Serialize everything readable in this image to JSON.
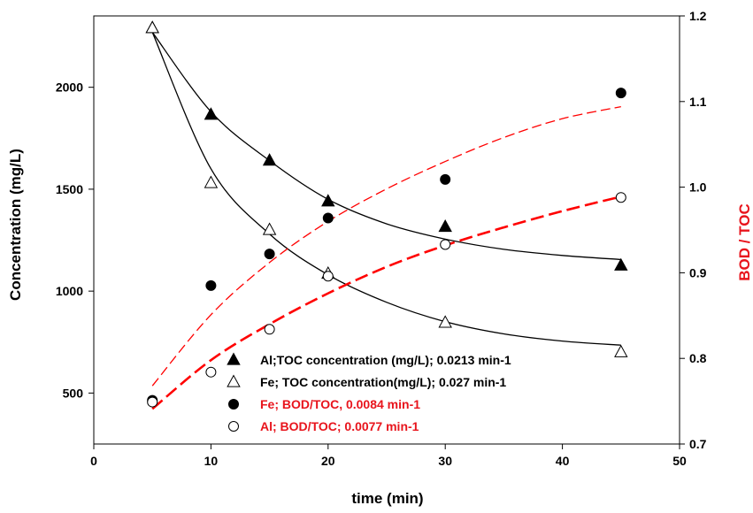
{
  "chart_data": {
    "type": "scatter",
    "xlabel": "time (min)",
    "ylabel": "Concentration (mg/L)",
    "y2label": "BOD / TOC",
    "xlim": [
      0,
      50
    ],
    "ylim": [
      250,
      2350
    ],
    "y2lim": [
      0.7,
      1.2
    ],
    "x_ticks": [
      0,
      10,
      20,
      30,
      40,
      50
    ],
    "y_ticks": [
      500,
      1000,
      1500,
      2000
    ],
    "y2_ticks": [
      0.7,
      0.8,
      0.9,
      1.0,
      1.1,
      1.2
    ],
    "y2_tick_labels": [
      "0.7",
      "0.8",
      "0.9",
      "1.0",
      "1.1",
      "1.2"
    ],
    "grid": false,
    "legend_position": "bottom-right",
    "series": [
      {
        "name": "Al;TOC concentration (mg/L); 0.0213 min-1",
        "axis": "left",
        "marker": "filled-triangle",
        "color": "#000000",
        "x": [
          5,
          10,
          15,
          20,
          30,
          45
        ],
        "y": [
          2290,
          1865,
          1640,
          1440,
          1315,
          1125
        ],
        "fit": {
          "style": "solid",
          "color": "#000000",
          "x": [
            5,
            10,
            15,
            20,
            25,
            30,
            35,
            40,
            45
          ],
          "y": [
            2270,
            1880,
            1640,
            1450,
            1330,
            1255,
            1205,
            1175,
            1155
          ]
        }
      },
      {
        "name": "Fe; TOC concentration(mg/L); 0.027 min-1",
        "axis": "left",
        "marker": "open-triangle",
        "color": "#000000",
        "x": [
          5,
          10,
          15,
          20,
          30,
          45
        ],
        "y": [
          2290,
          1530,
          1300,
          1085,
          845,
          700
        ],
        "fit": {
          "style": "solid",
          "color": "#000000",
          "x": [
            5,
            10,
            15,
            20,
            25,
            30,
            35,
            40,
            45
          ],
          "y": [
            2270,
            1600,
            1280,
            1080,
            945,
            850,
            790,
            755,
            735
          ]
        }
      },
      {
        "name": "Fe; BOD/TOC, 0.0084 min-1",
        "axis": "right",
        "marker": "filled-circle",
        "color": "#000000",
        "x": [
          5,
          10,
          15,
          20,
          30,
          45
        ],
        "y": [
          0.751,
          0.885,
          0.922,
          0.964,
          1.009,
          1.11
        ],
        "fit": {
          "style": "dashed-thin",
          "color": "#ff0000",
          "x": [
            5,
            10,
            15,
            20,
            25,
            30,
            35,
            40,
            45
          ],
          "y": [
            0.768,
            0.851,
            0.912,
            0.96,
            0.998,
            1.03,
            1.058,
            1.08,
            1.094
          ]
        }
      },
      {
        "name": "Al; BOD/TOC; 0.0077 min-1",
        "axis": "right",
        "marker": "open-circle",
        "color": "#000000",
        "x": [
          5,
          10,
          15,
          20,
          30,
          45
        ],
        "y": [
          0.749,
          0.784,
          0.834,
          0.896,
          0.933,
          0.988
        ],
        "fit": {
          "style": "dashed-thick",
          "color": "#ff0000",
          "x": [
            5,
            10,
            15,
            20,
            25,
            30,
            35,
            40,
            45
          ],
          "y": [
            0.741,
            0.798,
            0.84,
            0.876,
            0.907,
            0.932,
            0.953,
            0.972,
            0.989
          ]
        }
      }
    ],
    "legend": [
      {
        "label": "Al;TOC concentration (mg/L); 0.0213 min-1",
        "marker": "filled-triangle",
        "text_color": "#000000"
      },
      {
        "label": "Fe; TOC concentration(mg/L); 0.027 min-1",
        "marker": "open-triangle",
        "text_color": "#000000"
      },
      {
        "label": "Fe; BOD/TOC, 0.0084 min-1",
        "marker": "filled-circle",
        "text_color": "#e8141c"
      },
      {
        "label": "Al; BOD/TOC; 0.0077 min-1",
        "marker": "open-circle",
        "text_color": "#e8141c"
      }
    ],
    "colors": {
      "axis": "#000000",
      "fit_red": "#ff0000",
      "legend_red": "#e8141c",
      "y2label": "#e8141c"
    }
  }
}
